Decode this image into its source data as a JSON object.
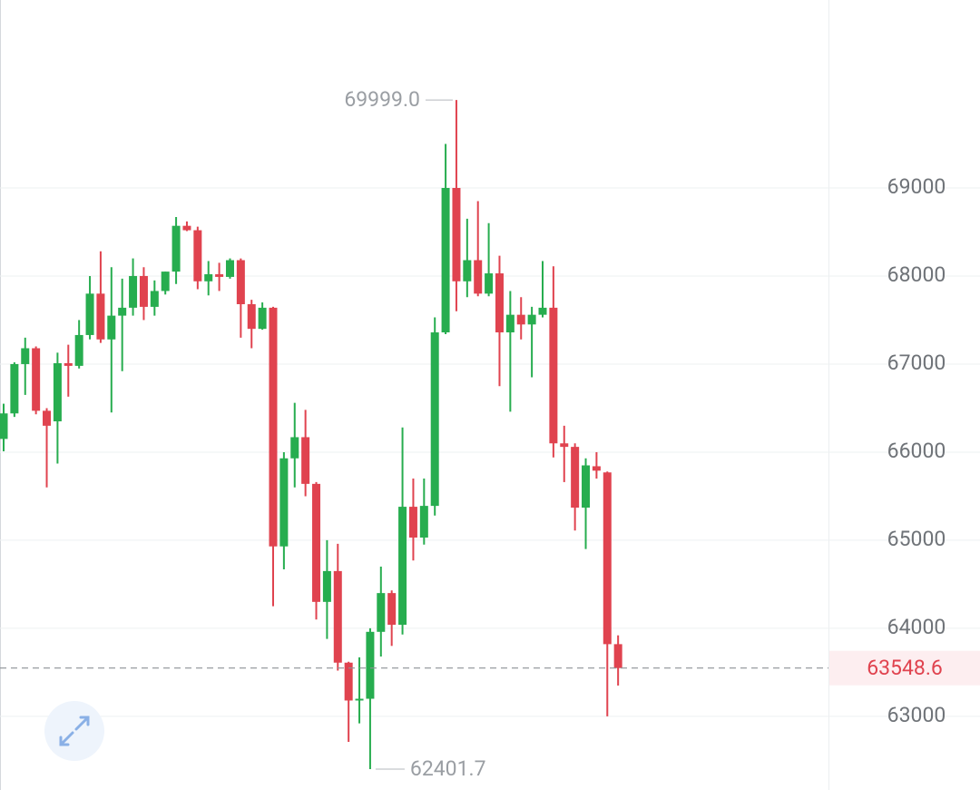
{
  "chart_data": {
    "type": "candlestick",
    "up_color": "#27ad4f",
    "down_color": "#e0434f",
    "ylim": [
      62164,
      71134
    ],
    "yticks": [
      63000,
      64000,
      65000,
      66000,
      67000,
      68000,
      69000
    ],
    "grid": true,
    "extreme_labels": {
      "high": "69999.0",
      "low": "62401.7"
    },
    "open": [
      66150,
      66440,
      67000,
      67180,
      66470,
      66350,
      67010,
      66980,
      67330,
      67800,
      67280,
      67550,
      67640,
      68000,
      67650,
      67830,
      68050,
      68570,
      68520,
      67940,
      68020,
      67990,
      68180,
      67680,
      67400,
      67640,
      64930,
      65930,
      66170,
      65640,
      64300,
      64650,
      63610,
      63180,
      63200,
      63960,
      64400,
      64040,
      65380,
      65030,
      65390,
      67360,
      69000,
      67940,
      68180,
      67800,
      68030,
      67360,
      67560,
      67450,
      67560,
      67640,
      66100,
      66060,
      65370,
      65840,
      65770,
      63820
    ],
    "high": [
      66550,
      67020,
      67300,
      67200,
      66500,
      67130,
      67220,
      67500,
      68000,
      68280,
      68100,
      67970,
      68200,
      68100,
      67950,
      68050,
      68670,
      68620,
      68560,
      68170,
      68150,
      68200,
      68200,
      67730,
      67700,
      67650,
      66000,
      66560,
      66480,
      65660,
      65000,
      64960,
      63620,
      63670,
      64000,
      64700,
      64430,
      66280,
      65700,
      65700,
      67530,
      69500,
      69999,
      68650,
      68850,
      68600,
      68230,
      67830,
      67760,
      67650,
      68170,
      68110,
      66300,
      66100,
      65930,
      66000,
      65780,
      63920
    ],
    "low": [
      66010,
      66400,
      66650,
      66430,
      65600,
      65870,
      66630,
      66950,
      67280,
      67240,
      66450,
      66920,
      67550,
      67500,
      67550,
      67790,
      67910,
      68510,
      67850,
      67780,
      67830,
      67970,
      67300,
      67180,
      67390,
      64250,
      64670,
      65600,
      65500,
      64100,
      63880,
      63520,
      62710,
      62920,
      62401.7,
      63680,
      63800,
      63930,
      64770,
      64950,
      65280,
      67340,
      67600,
      67760,
      67770,
      67770,
      66750,
      66460,
      67280,
      66850,
      67530,
      65940,
      65660,
      65110,
      64900,
      65700,
      63000,
      63350
    ],
    "close": [
      66440,
      67000,
      67180,
      66470,
      66300,
      67010,
      66980,
      67330,
      67800,
      67280,
      67550,
      67640,
      68000,
      67650,
      67830,
      68050,
      68570,
      68520,
      67940,
      68020,
      67990,
      68180,
      67680,
      67400,
      67640,
      64930,
      65930,
      66170,
      65640,
      64300,
      64650,
      63610,
      63180,
      63200,
      63960,
      64400,
      64040,
      65380,
      65030,
      65390,
      67360,
      69000,
      67940,
      68180,
      67800,
      68030,
      67360,
      67560,
      67450,
      67560,
      67640,
      66100,
      66060,
      65370,
      65850,
      65790,
      63820,
      63548.6
    ]
  }
}
